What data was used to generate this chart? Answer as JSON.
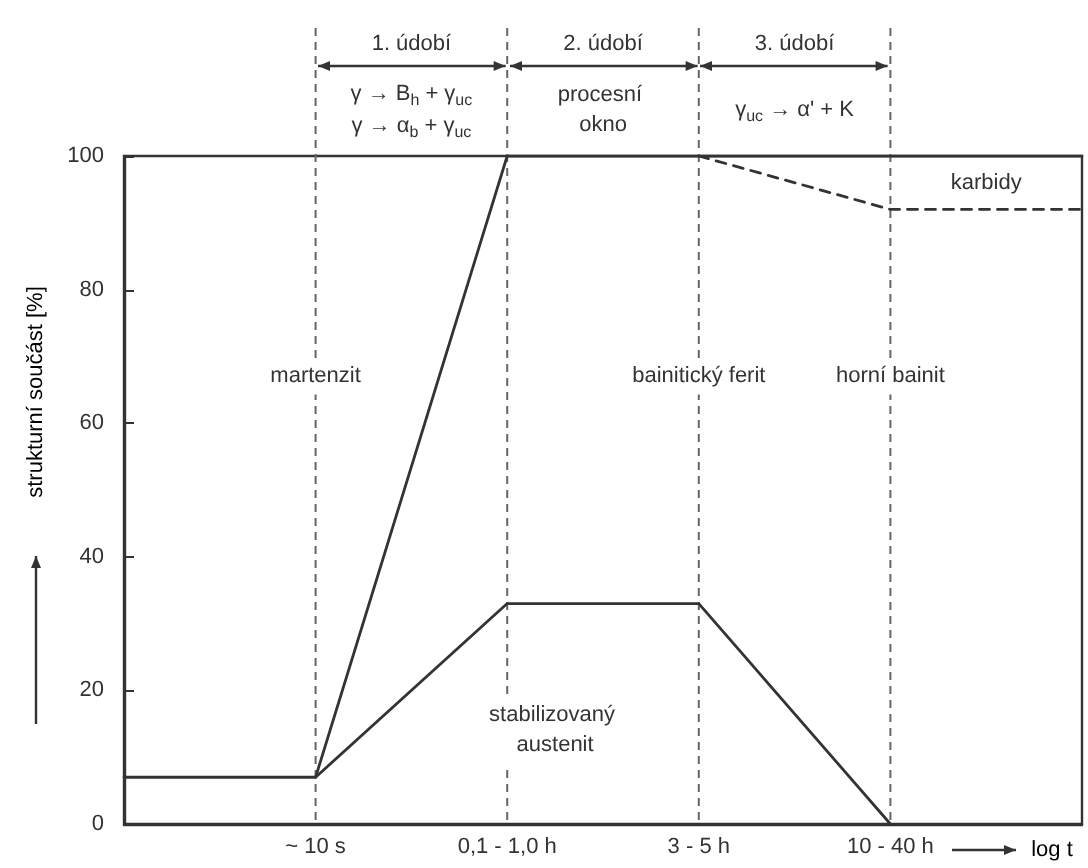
{
  "chart_data": {
    "type": "line",
    "ylabel": "strukturní součást [%]",
    "xlabel": "log t",
    "categories": [
      null,
      "~ 10 s",
      "0,1 - 1,0 h",
      "3 - 5 h",
      "10 - 40 h",
      null
    ],
    "series": [
      {
        "color": "#333333",
        "values": [
          7,
          7,
          100,
          100,
          100,
          100
        ],
        "line_style": "solid"
      },
      {
        "color": "#333333",
        "values": [
          null,
          7,
          33,
          33,
          0,
          null
        ],
        "line_style": "solid"
      },
      {
        "color": "#333333",
        "values": [
          null,
          null,
          null,
          100,
          92,
          92
        ],
        "line_style": "dashed"
      }
    ],
    "ylim": [
      0,
      100
    ],
    "yticks": [
      0,
      20,
      40,
      60,
      80,
      100
    ],
    "ref_lines": [
      {
        "axis": "x",
        "value": "~ 10 s",
        "color": "#666666",
        "line_style": "dashed"
      },
      {
        "axis": "x",
        "value": "0,1 - 1,0 h",
        "color": "#666666",
        "line_style": "dashed"
      },
      {
        "axis": "x",
        "value": "3 - 5 h",
        "color": "#666666",
        "line_style": "dashed"
      },
      {
        "axis": "x",
        "value": "10 - 40 h",
        "color": "#666666",
        "line_style": "dashed"
      }
    ],
    "annotations": [
      "1. údobí",
      "2. údobí",
      "3. údobí",
      "γ → B$_{h}$ + γ$_{uc}$",
      "γ → α$_{b}$ + γ$_{uc}$",
      "procesní okno",
      "γ$_{uc}$ → α' + K",
      "martenzit",
      "bainitický ferit",
      "horní bainit",
      "karbidy",
      "stabilizovaný austenit"
    ],
    "grid": false,
    "marker": "none"
  }
}
